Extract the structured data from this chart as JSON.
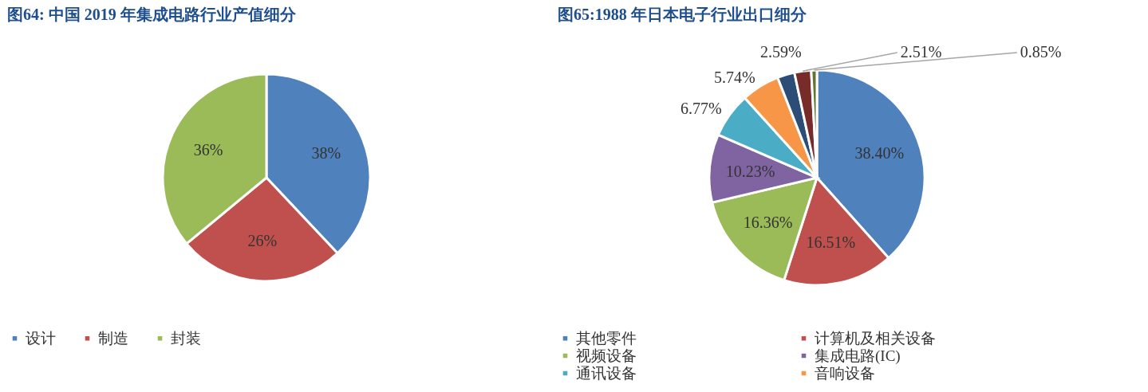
{
  "chart_data": [
    {
      "type": "pie",
      "title": "图64: 中国 2019 年集成电路行业产值细分",
      "categories": [
        "设计",
        "制造",
        "封装"
      ],
      "values": [
        38,
        26,
        36
      ],
      "colors": [
        "#4f81bd",
        "#c0504d",
        "#9bbb59"
      ],
      "value_labels": [
        "38%",
        "26%",
        "36%"
      ],
      "legend": "bottom"
    },
    {
      "type": "pie",
      "title": "图65:1988 年日本电子行业出口细分",
      "categories": [
        "其他零件",
        "计算机及相关设备",
        "视频设备",
        "集成电路(IC)",
        "通讯设备",
        "音响设备",
        null,
        null,
        null
      ],
      "values": [
        38.4,
        16.51,
        16.36,
        10.23,
        6.77,
        5.74,
        2.59,
        2.51,
        0.85
      ],
      "colors": [
        "#4f81bd",
        "#c0504d",
        "#9bbb59",
        "#8064a2",
        "#4bacc6",
        "#f79646",
        "#2c4d75",
        "#772c2a",
        "#5f7530"
      ],
      "value_labels": [
        "38.40%",
        "16.51%",
        "16.36%",
        "10.23%",
        "6.77%",
        "5.74%",
        "2.59%",
        "2.51%",
        "0.85%"
      ],
      "legend": "bottom"
    }
  ]
}
